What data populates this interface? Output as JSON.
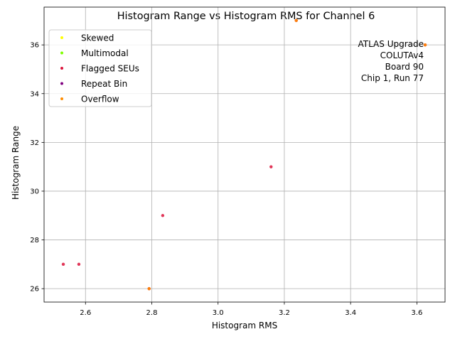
{
  "chart_data": {
    "type": "scatter",
    "title": "Histogram Range vs Histogram RMS for Channel 6",
    "xlabel": "Histogram RMS",
    "ylabel": "Histogram Range",
    "xlim": [
      2.475,
      3.685
    ],
    "ylim": [
      25.45,
      37.55
    ],
    "xticks": [
      2.6,
      2.8,
      3.0,
      3.2,
      3.4,
      3.6
    ],
    "yticks": [
      26,
      28,
      30,
      32,
      34,
      36
    ],
    "xtick_labels": [
      "2.6",
      "2.8",
      "3.0",
      "3.2",
      "3.4",
      "3.6"
    ],
    "ytick_labels": [
      "26",
      "28",
      "30",
      "32",
      "34",
      "36"
    ],
    "grid": true,
    "legend_position": "top-left",
    "series": [
      {
        "name": "Skewed",
        "color": "#ffff00",
        "points": []
      },
      {
        "name": "Multimodal",
        "color": "#7fff00",
        "points": []
      },
      {
        "name": "Flagged SEUs",
        "color": "#dc143c",
        "points": [
          {
            "x": 2.533,
            "y": 27
          },
          {
            "x": 2.58,
            "y": 27
          },
          {
            "x": 2.833,
            "y": 29
          },
          {
            "x": 3.16,
            "y": 31
          },
          {
            "x": 2.792,
            "y": 26
          },
          {
            "x": 3.236,
            "y": 37
          },
          {
            "x": 3.625,
            "y": 36
          }
        ]
      },
      {
        "name": "Repeat Bin",
        "color": "#800080",
        "points": []
      },
      {
        "name": "Overflow",
        "color": "#ff8c00",
        "points": [
          {
            "x": 2.792,
            "y": 26
          },
          {
            "x": 3.236,
            "y": 37
          },
          {
            "x": 3.625,
            "y": 36
          }
        ]
      }
    ],
    "annotation": [
      "ATLAS Upgrade",
      "COLUTAv4",
      "Board 90",
      "Chip 1, Run 77"
    ]
  }
}
